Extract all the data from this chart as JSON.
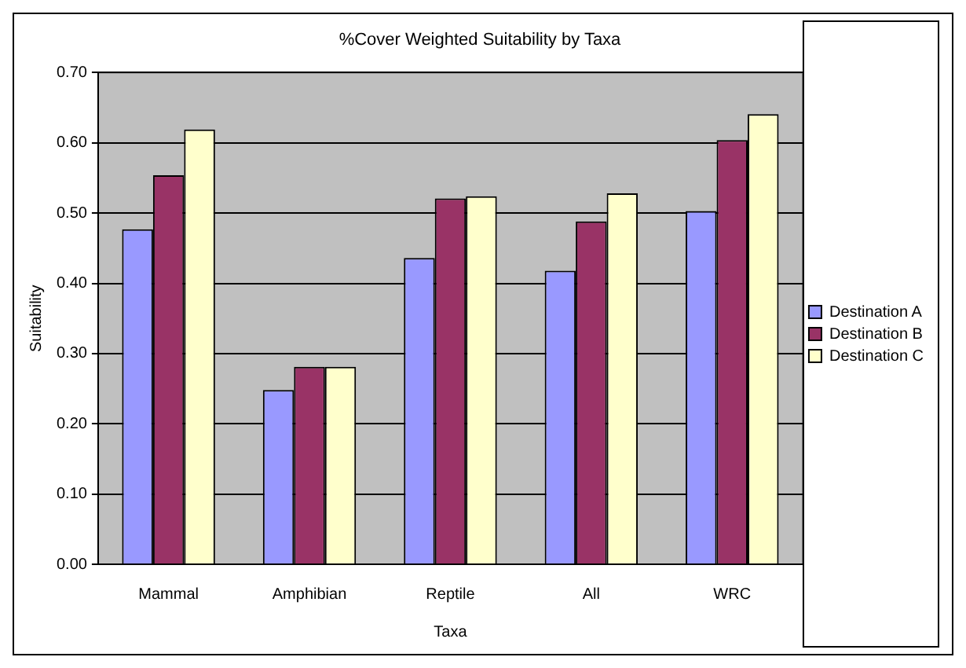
{
  "chart_data": {
    "type": "bar",
    "title": "%Cover Weighted Suitability by Taxa",
    "xlabel": "Taxa",
    "ylabel": "Suitability",
    "categories": [
      "Mammal",
      "Amphibian",
      "Reptile",
      "All",
      "WRC"
    ],
    "series": [
      {
        "name": "Destination A",
        "color": "#9999ff",
        "values": [
          0.477,
          0.248,
          0.436,
          0.418,
          0.503
        ]
      },
      {
        "name": "Destination B",
        "color": "#993366",
        "values": [
          0.554,
          0.281,
          0.521,
          0.488,
          0.604
        ]
      },
      {
        "name": "Destination C",
        "color": "#ffffcc",
        "values": [
          0.619,
          0.281,
          0.524,
          0.528,
          0.641
        ]
      }
    ],
    "ylim": [
      0,
      0.7
    ],
    "yticks": [
      {
        "value": 0,
        "label": "0.00"
      },
      {
        "value": 0.1,
        "label": "0.10"
      },
      {
        "value": 0.2,
        "label": "0.20"
      },
      {
        "value": 0.3,
        "label": "0.30"
      },
      {
        "value": 0.4,
        "label": "0.40"
      },
      {
        "value": 0.5,
        "label": "0.50"
      },
      {
        "value": 0.6,
        "label": "0.60"
      },
      {
        "value": 0.7,
        "label": "0.70"
      }
    ],
    "grid": "y",
    "legend": "right"
  }
}
